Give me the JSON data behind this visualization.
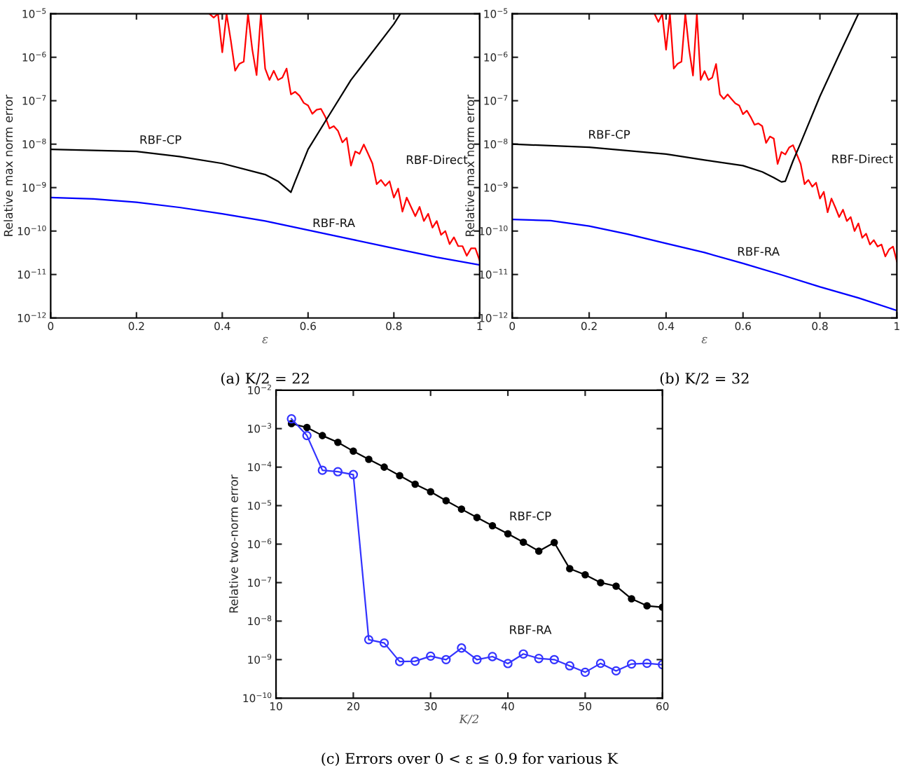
{
  "chart_data": [
    {
      "type": "line",
      "xlabel": "ε",
      "ylabel": "Relative max norm error",
      "log": true,
      "grid": false,
      "xlim": [
        0,
        1
      ],
      "xticks": [
        0,
        0.2,
        0.4,
        0.6,
        0.8,
        1
      ],
      "ylim": [
        1e-12,
        1e-05
      ],
      "yticks": [
        {
          "value": 1e-12,
          "label": "10$^{−12}$"
        },
        {
          "value": 1e-11,
          "label": "10$^{−11}$"
        },
        {
          "value": 1e-10,
          "label": "10$^{−10}$"
        },
        {
          "value": 1e-09,
          "label": "10$^{−9}$"
        },
        {
          "value": 1e-08,
          "label": "10$^{−8}$"
        },
        {
          "value": 1e-07,
          "label": "10$^{−7}$"
        },
        {
          "value": 1e-06,
          "label": "10$^{−6}$"
        },
        {
          "value": 1e-05,
          "label": "10$^{−5}$"
        }
      ],
      "series": [
        {
          "name": "RBF-Direct",
          "color": "#ff0000",
          "x": [
            0.37,
            0.38,
            0.39,
            0.4,
            0.41,
            0.42,
            0.43,
            0.44,
            0.45,
            0.46,
            0.47,
            0.48,
            0.49,
            0.5,
            0.51,
            0.52,
            0.53,
            0.54,
            0.55,
            0.56,
            0.57,
            0.58,
            0.59,
            0.6,
            0.61,
            0.62,
            0.63,
            0.64,
            0.65,
            0.66,
            0.67,
            0.68,
            0.69,
            0.7,
            0.71,
            0.72,
            0.73,
            0.74,
            0.75,
            0.76,
            0.77,
            0.78,
            0.79,
            0.8,
            0.81,
            0.82,
            0.83,
            0.84,
            0.85,
            0.86,
            0.87,
            0.88,
            0.89,
            0.9,
            0.91,
            0.92,
            0.93,
            0.94,
            0.95,
            0.96,
            0.97,
            0.98,
            0.99,
            1.0
          ],
          "values": [
            1e-05,
            8.2e-06,
            1e-05,
            1.3e-06,
            1e-05,
            2.4e-06,
            4.9e-07,
            7.1e-07,
            7.9e-07,
            1e-05,
            1.5e-06,
            3.9e-07,
            1e-05,
            5.5e-07,
            3e-07,
            4.9e-07,
            3e-07,
            3.4e-07,
            5.5e-07,
            1.4e-07,
            1.6e-07,
            1.3e-07,
            8.9e-08,
            7.8e-08,
            5e-08,
            6.2e-08,
            6.5e-08,
            4.3e-08,
            2.3e-08,
            2.6e-08,
            2e-08,
            1.1e-08,
            1.4e-08,
            3.2e-09,
            6.8e-09,
            6e-09,
            9.8e-09,
            6e-09,
            3.6e-09,
            1.2e-09,
            1.5e-09,
            1.1e-09,
            1.4e-09,
            5.9e-10,
            9.5e-10,
            2.8e-10,
            5.9e-10,
            3.6e-10,
            2.2e-10,
            3.6e-10,
            1.7e-10,
            2.5e-10,
            1.2e-10,
            1.7e-10,
            8.2e-11,
            1e-10,
            5e-11,
            7.2e-11,
            4.5e-11,
            4.5e-11,
            2.7e-11,
            4e-11,
            4e-11,
            2.1e-11
          ]
        },
        {
          "name": "RBF-CP",
          "color": "#000000",
          "x": [
            0,
            0.2,
            0.3,
            0.4,
            0.5,
            0.53,
            0.55,
            0.56,
            0.57,
            0.6,
            0.65,
            0.7,
            0.8,
            0.815
          ],
          "values": [
            7.6e-09,
            6.8e-09,
            5.2e-09,
            3.6e-09,
            2e-09,
            1.4e-09,
            9.5e-10,
            7.8e-10,
            1.4e-09,
            7.6e-09,
            4.8e-08,
            3e-07,
            5.8e-06,
            1e-05
          ]
        },
        {
          "name": "RBF-RA",
          "color": "#0000ff",
          "x": [
            0,
            0.1,
            0.2,
            0.3,
            0.4,
            0.5,
            0.6,
            0.7,
            0.8,
            0.9,
            1.0
          ],
          "values": [
            5.9e-10,
            5.5e-10,
            4.6e-10,
            3.5e-10,
            2.5e-10,
            1.7e-10,
            1.05e-10,
            6.5e-11,
            4e-11,
            2.5e-11,
            1.66e-11
          ]
        }
      ],
      "annotations": [
        "(a) K/2 = 22"
      ]
    },
    {
      "type": "line",
      "xlabel": "ε",
      "ylabel": "Relative max norm error",
      "log": true,
      "grid": false,
      "xlim": [
        0,
        1
      ],
      "xticks": [
        0,
        0.2,
        0.4,
        0.6,
        0.8,
        1
      ],
      "ylim": [
        1e-12,
        1e-05
      ],
      "yticks": [
        {
          "value": 1e-12,
          "label": "10$^{−12}$"
        },
        {
          "value": 1e-11,
          "label": "10$^{−11}$"
        },
        {
          "value": 1e-10,
          "label": "10$^{−10}$"
        },
        {
          "value": 1e-09,
          "label": "10$^{−9}$"
        },
        {
          "value": 1e-08,
          "label": "10$^{−8}$"
        },
        {
          "value": 1e-07,
          "label": "10$^{−7}$"
        },
        {
          "value": 1e-06,
          "label": "10$^{−6}$"
        },
        {
          "value": 1e-05,
          "label": "10$^{−5}$"
        }
      ],
      "series": [
        {
          "name": "RBF-Direct",
          "color": "#ff0000",
          "x": [
            0.37,
            0.38,
            0.39,
            0.4,
            0.41,
            0.42,
            0.43,
            0.44,
            0.45,
            0.46,
            0.47,
            0.48,
            0.49,
            0.5,
            0.51,
            0.52,
            0.53,
            0.54,
            0.55,
            0.56,
            0.57,
            0.58,
            0.59,
            0.6,
            0.61,
            0.62,
            0.63,
            0.64,
            0.65,
            0.66,
            0.67,
            0.68,
            0.69,
            0.7,
            0.71,
            0.72,
            0.73,
            0.74,
            0.75,
            0.76,
            0.77,
            0.78,
            0.79,
            0.8,
            0.81,
            0.82,
            0.83,
            0.84,
            0.85,
            0.86,
            0.87,
            0.88,
            0.89,
            0.9,
            0.91,
            0.92,
            0.93,
            0.94,
            0.95,
            0.96,
            0.97,
            0.98,
            0.99,
            1.0
          ],
          "values": [
            1e-05,
            6.5e-06,
            1e-05,
            1.5e-06,
            1e-05,
            5.5e-07,
            7.1e-07,
            7.9e-07,
            1e-05,
            1.5e-06,
            3.8e-07,
            1e-05,
            3e-07,
            4.8e-07,
            3e-07,
            3.4e-07,
            7e-07,
            1.4e-07,
            1.1e-07,
            1.4e-07,
            1.1e-07,
            8.7e-08,
            7.8e-08,
            4.9e-08,
            5.9e-08,
            4.2e-08,
            2.8e-08,
            3e-08,
            2.6e-08,
            1.07e-08,
            1.5e-08,
            1.35e-08,
            3.5e-09,
            6.6e-09,
            5.8e-09,
            8.4e-09,
            9.5e-09,
            5.8e-09,
            3.5e-09,
            1.2e-09,
            1.5e-09,
            1.05e-09,
            1.3e-09,
            5.6e-10,
            8e-10,
            2.7e-10,
            5.6e-10,
            3.5e-10,
            2.1e-10,
            3.1e-10,
            1.7e-10,
            2.1e-10,
            1e-10,
            1.5e-10,
            7e-11,
            8.7e-11,
            4.9e-11,
            6.2e-11,
            4.4e-11,
            4.9e-11,
            2.6e-11,
            3.8e-11,
            4.4e-11,
            2e-11
          ]
        },
        {
          "name": "RBF-CP",
          "color": "#000000",
          "x": [
            0,
            0.2,
            0.4,
            0.5,
            0.6,
            0.65,
            0.68,
            0.7,
            0.71,
            0.73,
            0.75,
            0.8,
            0.85,
            0.9
          ],
          "values": [
            1e-08,
            8.5e-09,
            5.9e-09,
            4.3e-09,
            3.2e-09,
            2.3e-09,
            1.7e-09,
            1.35e-09,
            1.4e-09,
            4.1e-09,
            1.07e-08,
            1.26e-07,
            1.15e-06,
            1e-05
          ]
        },
        {
          "name": "RBF-RA",
          "color": "#0000ff",
          "x": [
            0,
            0.1,
            0.2,
            0.3,
            0.4,
            0.5,
            0.6,
            0.7,
            0.8,
            0.9,
            1.0
          ],
          "values": [
            1.86e-10,
            1.74e-10,
            1.3e-10,
            8.5e-11,
            5.2e-11,
            3.2e-11,
            1.8e-11,
            9.8e-12,
            5.2e-12,
            2.9e-12,
            1.48e-12
          ]
        }
      ],
      "annotations": [
        "(b) K/2 = 32"
      ]
    },
    {
      "type": "line",
      "xlabel": "K/2",
      "ylabel": "Relative two-norm error",
      "log": true,
      "grid": false,
      "marker": "circle",
      "xlim": [
        10,
        60
      ],
      "xticks": [
        10,
        20,
        30,
        40,
        50,
        60
      ],
      "ylim": [
        1e-10,
        0.01
      ],
      "yticks": [
        {
          "value": 1e-10,
          "label": "10$^{−10}$"
        },
        {
          "value": 1e-09,
          "label": "10$^{−9}$"
        },
        {
          "value": 1e-08,
          "label": "10$^{−8}$"
        },
        {
          "value": 1e-07,
          "label": "10$^{−7}$"
        },
        {
          "value": 1e-06,
          "label": "10$^{−6}$"
        },
        {
          "value": 1e-05,
          "label": "10$^{−5}$"
        },
        {
          "value": 0.0001,
          "label": "10$^{−4}$"
        },
        {
          "value": 0.001,
          "label": "10$^{−3}$"
        },
        {
          "value": 0.01,
          "label": "10$^{−2}$"
        }
      ],
      "x": [
        12,
        14,
        16,
        18,
        20,
        22,
        24,
        26,
        28,
        30,
        32,
        34,
        36,
        38,
        40,
        42,
        44,
        46,
        48,
        50,
        52,
        54,
        56,
        58,
        60
      ],
      "series": [
        {
          "name": "RBF-CP",
          "color": "#000000",
          "values": [
            0.00135,
            0.00107,
            0.00066,
            0.00044,
            0.00026,
            0.00016,
            0.0001,
            6e-05,
            3.6e-05,
            2.3e-05,
            1.35e-05,
            8.1e-06,
            4.9e-06,
            3e-06,
            1.86e-06,
            1.12e-06,
            6.6e-07,
            1.1e-06,
            2.3e-07,
            1.6e-07,
            1e-07,
            8.1e-08,
            3.8e-08,
            2.5e-08,
            2.3e-08
          ]
        },
        {
          "name": "RBF-RA",
          "color": "#3333ff",
          "values": [
            0.0018,
            0.00066,
            8.3e-05,
            7.6e-05,
            6.4e-05,
            3.3e-09,
            2.7e-09,
            8.9e-10,
            9.1e-10,
            1.23e-09,
            1e-09,
            2e-09,
            1e-09,
            1.2e-09,
            7.9e-10,
            1.4e-09,
            1.07e-09,
            1e-09,
            6.9e-10,
            4.7e-10,
            8e-10,
            5.1e-10,
            7.7e-10,
            8e-10,
            7.4e-10
          ]
        }
      ],
      "annotations": [
        "(c) Errors over 0 < ε ≤ 0.9 for various K"
      ]
    }
  ]
}
